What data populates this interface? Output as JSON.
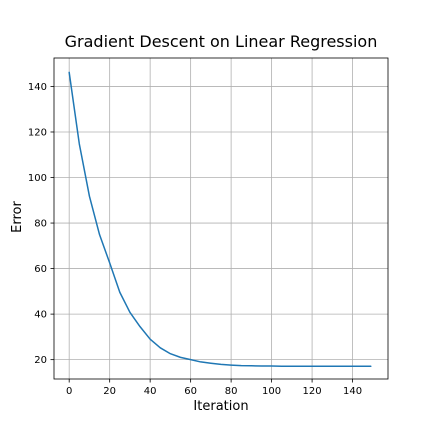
{
  "chart_data": {
    "type": "line",
    "title": "Gradient Descent on Linear Regression",
    "xlabel": "Iteration",
    "ylabel": "Error",
    "xlim": [
      -7.5,
      157.5
    ],
    "ylim": [
      11.5,
      152.5
    ],
    "xticks": [
      0,
      20,
      40,
      60,
      80,
      100,
      120,
      140
    ],
    "yticks": [
      20,
      40,
      60,
      80,
      100,
      120,
      140
    ],
    "grid": true,
    "series": [
      {
        "color": "#1f77b4",
        "x": [
          0,
          5,
          10,
          15,
          20,
          25,
          30,
          35,
          40,
          45,
          50,
          55,
          60,
          65,
          70,
          75,
          80,
          85,
          90,
          95,
          100,
          105,
          110,
          115,
          120,
          125,
          130,
          135,
          140,
          145,
          149
        ],
        "y": [
          146.2,
          114.8,
          91.8,
          74.9,
          62.5,
          49.6,
          40.8,
          34.5,
          29.0,
          25.2,
          22.6,
          21.0,
          20.0,
          19.0,
          18.4,
          17.9,
          17.6,
          17.4,
          17.3,
          17.2,
          17.2,
          17.1,
          17.1,
          17.1,
          17.1,
          17.1,
          17.1,
          17.1,
          17.1,
          17.1,
          17.1
        ]
      }
    ]
  }
}
